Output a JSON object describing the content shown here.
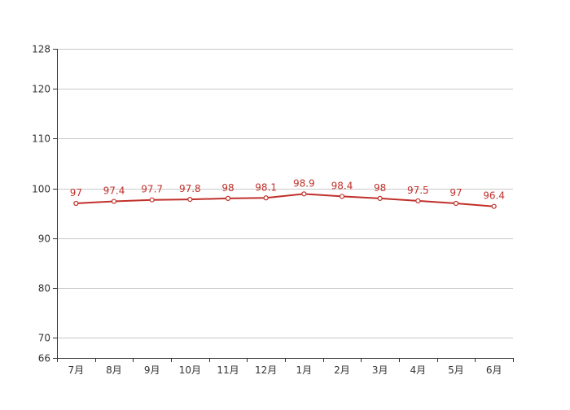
{
  "chart_data": {
    "type": "line",
    "categories": [
      "7月",
      "8月",
      "9月",
      "10月",
      "11月",
      "12月",
      "1月",
      "2月",
      "3月",
      "4月",
      "5月",
      "6月"
    ],
    "series": [
      {
        "values": [
          97,
          97.4,
          97.7,
          97.8,
          98,
          98.1,
          98.9,
          98.4,
          98,
          97.5,
          97,
          96.4
        ],
        "labels": [
          "97",
          "97.4",
          "97.7",
          "97.8",
          "98",
          "98.1",
          "98.9",
          "98.4",
          "98",
          "97.5",
          "97",
          "96.4"
        ],
        "color": "#c0302b"
      }
    ],
    "ylim": [
      66,
      128
    ],
    "yticks": [
      66,
      70,
      80,
      90,
      100,
      110,
      120,
      128
    ],
    "ytick_labels": [
      "66",
      "70",
      "80",
      "90",
      "100",
      "110",
      "120",
      "128"
    ],
    "grid": true,
    "title": "",
    "xlabel": "",
    "ylabel": ""
  }
}
